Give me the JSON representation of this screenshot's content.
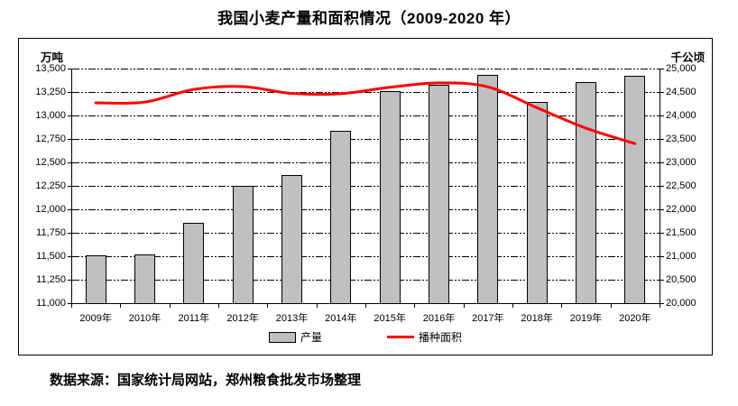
{
  "page": {
    "source_note": "数据来源：国家统计局网站，郑州粮食批发市场整理"
  },
  "chart_data": {
    "type": "bar+line combo",
    "title": "我国小麦产量和面积情况（2009-2020 年）",
    "categories": [
      "2009年",
      "2010年",
      "2011年",
      "2012年",
      "2013年",
      "2014年",
      "2015年",
      "2016年",
      "2017年",
      "2018年",
      "2019年",
      "2020年"
    ],
    "series": [
      {
        "name": "产量",
        "type": "bar",
        "axis": "left",
        "unit": "万吨",
        "values": [
          11512,
          11518,
          11860,
          12246,
          12370,
          12832,
          13264,
          13327,
          13433,
          13144,
          13360,
          13425
        ],
        "fill_color": "#C0C0C0",
        "border_color": "#000000"
      },
      {
        "name": "播种面积",
        "type": "line",
        "axis": "right",
        "unit": "千公顷",
        "values": [
          24270,
          24285,
          24555,
          24615,
          24470,
          24465,
          24600,
          24695,
          24610,
          24165,
          23730,
          23400
        ],
        "color": "#FF0000"
      }
    ],
    "left_axis": {
      "unit": "万吨",
      "min": 11000,
      "max": 13500,
      "step": 250,
      "tick_labels": [
        "11,000",
        "11,250",
        "11,500",
        "11,750",
        "12,000",
        "12,250",
        "12,500",
        "12,750",
        "13,000",
        "13,250",
        "13,500"
      ]
    },
    "right_axis": {
      "unit": "千公顷",
      "min": 20000,
      "max": 25000,
      "step": 500,
      "tick_labels": [
        "20,000",
        "20,500",
        "21,000",
        "21,500",
        "22,000",
        "22,500",
        "23,000",
        "23,500",
        "24,000",
        "24,500",
        "25,000"
      ]
    },
    "grid": true,
    "legend_position": "bottom-inside",
    "colors": {
      "bar_fill": "#C0C0C0",
      "bar_border": "#000000",
      "line": "#FF0000",
      "text": "#000000",
      "background": "#FFFFFF",
      "box_border": "#000000"
    }
  }
}
